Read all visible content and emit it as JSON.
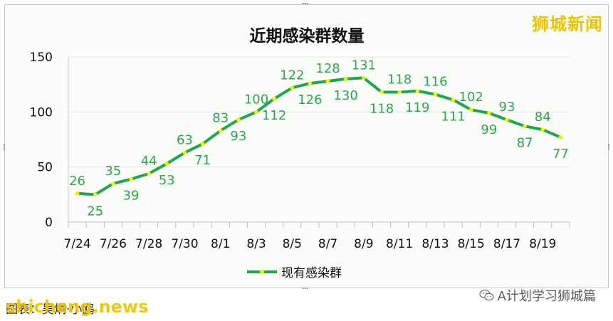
{
  "brand": "狮城新闻",
  "source_note": "图表：吴炯·小鸥",
  "watermark": "shicheng.news",
  "wechat_label": "A计划学习狮城篇",
  "colors": {
    "line": "#1ea84a",
    "marker": "#f4f200",
    "label": "#2aa84a",
    "brand": "#f2c200"
  },
  "chart_data": {
    "type": "line",
    "title": "近期感染群数量",
    "xlabel": "",
    "ylabel": "",
    "ylim": [
      0,
      150
    ],
    "yticks": [
      0,
      50,
      100,
      150
    ],
    "grid": "horizontal",
    "legend_position": "bottom",
    "x": [
      "7/24",
      "7/25",
      "7/26",
      "7/27",
      "7/28",
      "7/29",
      "7/30",
      "7/31",
      "8/1",
      "8/2",
      "8/3",
      "8/4",
      "8/5",
      "8/6",
      "8/7",
      "8/8",
      "8/9",
      "8/10",
      "8/11",
      "8/12",
      "8/13",
      "8/14",
      "8/15",
      "8/16",
      "8/17",
      "8/18",
      "8/19",
      "8/20"
    ],
    "xtick_labels": [
      "7/24",
      "7/26",
      "7/28",
      "7/30",
      "8/1",
      "8/3",
      "8/5",
      "8/7",
      "8/9",
      "8/11",
      "8/13",
      "8/15",
      "8/17",
      "8/19"
    ],
    "series": [
      {
        "name": "现有感染群",
        "values": [
          26,
          25,
          35,
          39,
          44,
          53,
          63,
          71,
          83,
          93,
          100,
          112,
          122,
          126,
          128,
          130,
          131,
          118,
          118,
          119,
          116,
          111,
          102,
          99,
          93,
          87,
          84,
          77
        ]
      }
    ]
  }
}
